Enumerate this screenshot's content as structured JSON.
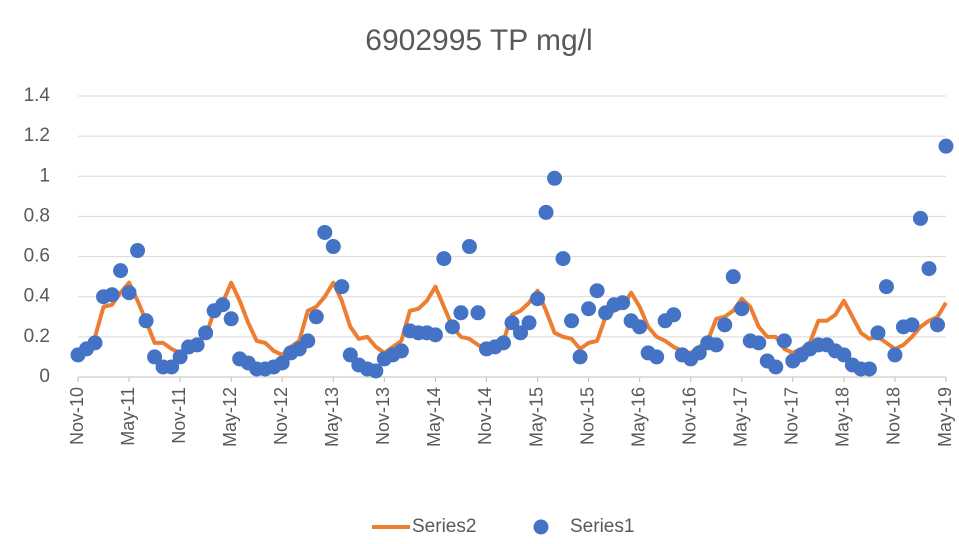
{
  "chart_data": {
    "type": "line",
    "title": "6902995 TP mg/l",
    "categories": [
      "Nov-10",
      null,
      null,
      null,
      null,
      null,
      "May-11",
      null,
      null,
      null,
      null,
      null,
      "Nov-11",
      null,
      null,
      null,
      null,
      null,
      "May-12",
      null,
      null,
      null,
      null,
      null,
      "Nov-12",
      null,
      null,
      null,
      null,
      null,
      "May-13",
      null,
      null,
      null,
      null,
      null,
      "Nov-13",
      null,
      null,
      null,
      null,
      null,
      "May-14",
      null,
      null,
      null,
      null,
      null,
      "Nov-14",
      null,
      null,
      null,
      null,
      null,
      "May-15",
      null,
      null,
      null,
      null,
      null,
      "Nov-15",
      null,
      null,
      null,
      null,
      null,
      "May-16",
      null,
      null,
      null,
      null,
      null,
      "Nov-16",
      null,
      null,
      null,
      null,
      null,
      "May-17",
      null,
      null,
      null,
      null,
      null,
      "Nov-17",
      null,
      null,
      null,
      null,
      null,
      "May-18",
      null,
      null,
      null,
      null,
      null,
      "Nov-18",
      null,
      null,
      null,
      null,
      null,
      "May-19"
    ],
    "series": [
      {
        "name": "Series2",
        "type": "line",
        "color": "#ED7D31",
        "values": [
          0.12,
          0.15,
          0.2,
          0.35,
          0.36,
          0.42,
          0.47,
          0.38,
          0.28,
          0.17,
          0.17,
          0.14,
          0.12,
          0.15,
          0.18,
          0.2,
          0.33,
          0.37,
          0.47,
          0.38,
          0.27,
          0.18,
          0.17,
          0.13,
          0.11,
          0.15,
          0.18,
          0.33,
          0.35,
          0.4,
          0.47,
          0.38,
          0.25,
          0.19,
          0.2,
          0.15,
          0.12,
          0.15,
          0.18,
          0.33,
          0.34,
          0.38,
          0.45,
          0.35,
          0.25,
          0.2,
          0.19,
          0.16,
          0.14,
          0.16,
          0.18,
          0.31,
          0.33,
          0.37,
          0.43,
          0.33,
          0.22,
          0.2,
          0.19,
          0.14,
          0.17,
          0.18,
          0.3,
          0.33,
          0.35,
          0.42,
          0.35,
          0.25,
          0.2,
          0.18,
          0.15,
          0.13,
          0.12,
          0.15,
          0.18,
          0.29,
          0.3,
          0.33,
          0.39,
          0.35,
          0.25,
          0.2,
          0.2,
          0.14,
          0.12,
          0.14,
          0.17,
          0.28,
          0.28,
          0.31,
          0.38,
          0.3,
          0.22,
          0.19,
          0.2,
          0.17,
          0.14,
          0.16,
          0.2,
          0.25,
          0.28,
          0.3,
          0.37
        ]
      },
      {
        "name": "Series1",
        "type": "scatter",
        "color": "#4472C4",
        "values": [
          0.11,
          0.14,
          0.17,
          0.4,
          0.41,
          0.53,
          0.42,
          0.63,
          0.28,
          0.1,
          0.05,
          0.05,
          0.1,
          0.15,
          0.16,
          0.22,
          0.33,
          0.36,
          0.29,
          0.09,
          0.07,
          0.04,
          0.04,
          0.05,
          0.07,
          0.12,
          0.14,
          0.18,
          0.3,
          0.72,
          0.65,
          0.45,
          0.11,
          0.06,
          0.04,
          0.03,
          0.09,
          0.11,
          0.13,
          0.23,
          0.22,
          0.22,
          0.21,
          0.59,
          0.25,
          0.32,
          0.65,
          0.32,
          0.14,
          0.15,
          0.17,
          0.27,
          0.22,
          0.27,
          0.39,
          0.82,
          0.99,
          0.59,
          0.28,
          0.1,
          0.34,
          0.43,
          0.32,
          0.36,
          0.37,
          0.28,
          0.25,
          0.12,
          0.1,
          0.28,
          0.31,
          0.11,
          0.09,
          0.12,
          0.17,
          0.16,
          0.26,
          0.5,
          0.34,
          0.18,
          0.17,
          0.08,
          0.05,
          0.18,
          0.08,
          0.11,
          0.14,
          0.16,
          0.16,
          0.13,
          0.11,
          0.06,
          0.04,
          0.04,
          0.22,
          0.45,
          0.11,
          0.25,
          0.26,
          0.79,
          0.54,
          0.26,
          1.15
        ]
      }
    ],
    "ylim": [
      0,
      1.4
    ],
    "yticks": [
      0,
      0.2,
      0.4,
      0.6,
      0.8,
      1,
      1.2,
      1.4
    ],
    "grid": true,
    "legend": "bottom"
  }
}
